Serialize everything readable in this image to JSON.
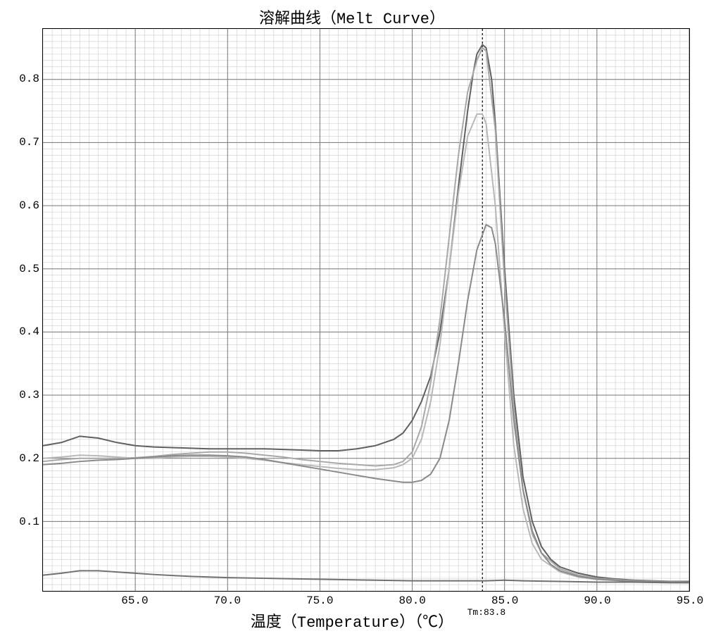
{
  "chart": {
    "type": "line",
    "title": "溶解曲线（Melt Curve）",
    "xlabel": "温度（Temperature）（℃）",
    "tm_annotation": "Tm:83.8",
    "tm_x": 83.8,
    "background_color": "#ffffff",
    "grid_minor_color": "#cccccc",
    "grid_major_color": "#777777",
    "border_color": "#000000",
    "x_axis": {
      "min": 60.0,
      "max": 95.0,
      "major_ticks": [
        65.0,
        70.0,
        75.0,
        80.0,
        85.0,
        90.0,
        95.0
      ],
      "minor_step": 0.5,
      "label_fontsize": 16
    },
    "y_axis": {
      "min": -0.01,
      "max": 0.88,
      "major_ticks": [
        0.1,
        0.2,
        0.3,
        0.4,
        0.5,
        0.6,
        0.7,
        0.8
      ],
      "minor_step": 0.01,
      "label_fontsize": 16
    },
    "series": [
      {
        "name": "curve-1",
        "color": "#606060",
        "line_width": 2.0,
        "points": [
          [
            60.0,
            0.22
          ],
          [
            61.0,
            0.225
          ],
          [
            62.0,
            0.235
          ],
          [
            63.0,
            0.232
          ],
          [
            64.0,
            0.225
          ],
          [
            65.0,
            0.22
          ],
          [
            66.0,
            0.218
          ],
          [
            67.0,
            0.217
          ],
          [
            68.0,
            0.216
          ],
          [
            69.0,
            0.215
          ],
          [
            70.0,
            0.215
          ],
          [
            71.0,
            0.215
          ],
          [
            72.0,
            0.215
          ],
          [
            73.0,
            0.214
          ],
          [
            74.0,
            0.213
          ],
          [
            75.0,
            0.212
          ],
          [
            76.0,
            0.212
          ],
          [
            77.0,
            0.215
          ],
          [
            78.0,
            0.22
          ],
          [
            79.0,
            0.23
          ],
          [
            79.5,
            0.24
          ],
          [
            80.0,
            0.26
          ],
          [
            80.5,
            0.29
          ],
          [
            81.0,
            0.33
          ],
          [
            81.5,
            0.4
          ],
          [
            82.0,
            0.5
          ],
          [
            82.5,
            0.63
          ],
          [
            83.0,
            0.75
          ],
          [
            83.3,
            0.81
          ],
          [
            83.5,
            0.84
          ],
          [
            83.8,
            0.855
          ],
          [
            84.0,
            0.85
          ],
          [
            84.3,
            0.8
          ],
          [
            84.5,
            0.73
          ],
          [
            85.0,
            0.5
          ],
          [
            85.5,
            0.3
          ],
          [
            86.0,
            0.17
          ],
          [
            86.5,
            0.1
          ],
          [
            87.0,
            0.06
          ],
          [
            87.5,
            0.04
          ],
          [
            88.0,
            0.028
          ],
          [
            89.0,
            0.018
          ],
          [
            90.0,
            0.012
          ],
          [
            91.0,
            0.009
          ],
          [
            92.0,
            0.007
          ],
          [
            93.0,
            0.006
          ],
          [
            94.0,
            0.005
          ],
          [
            95.0,
            0.005
          ]
        ]
      },
      {
        "name": "curve-2",
        "color": "#a8a8a8",
        "line_width": 2.0,
        "points": [
          [
            60.0,
            0.195
          ],
          [
            61.0,
            0.198
          ],
          [
            62.0,
            0.2
          ],
          [
            63.0,
            0.2
          ],
          [
            64.0,
            0.2
          ],
          [
            65.0,
            0.201
          ],
          [
            66.0,
            0.203
          ],
          [
            67.0,
            0.206
          ],
          [
            68.0,
            0.208
          ],
          [
            69.0,
            0.21
          ],
          [
            70.0,
            0.21
          ],
          [
            71.0,
            0.208
          ],
          [
            72.0,
            0.205
          ],
          [
            73.0,
            0.202
          ],
          [
            74.0,
            0.198
          ],
          [
            75.0,
            0.195
          ],
          [
            76.0,
            0.192
          ],
          [
            77.0,
            0.19
          ],
          [
            78.0,
            0.188
          ],
          [
            79.0,
            0.19
          ],
          [
            79.5,
            0.195
          ],
          [
            80.0,
            0.21
          ],
          [
            80.5,
            0.25
          ],
          [
            81.0,
            0.32
          ],
          [
            81.5,
            0.42
          ],
          [
            82.0,
            0.55
          ],
          [
            82.5,
            0.68
          ],
          [
            83.0,
            0.78
          ],
          [
            83.5,
            0.83
          ],
          [
            83.8,
            0.85
          ],
          [
            84.0,
            0.845
          ],
          [
            84.5,
            0.72
          ],
          [
            85.0,
            0.48
          ],
          [
            85.5,
            0.28
          ],
          [
            86.0,
            0.15
          ],
          [
            86.5,
            0.08
          ],
          [
            87.0,
            0.05
          ],
          [
            88.0,
            0.025
          ],
          [
            89.0,
            0.015
          ],
          [
            90.0,
            0.01
          ],
          [
            92.0,
            0.006
          ],
          [
            95.0,
            0.004
          ]
        ]
      },
      {
        "name": "curve-3",
        "color": "#b8b8b8",
        "line_width": 2.0,
        "points": [
          [
            60.0,
            0.2
          ],
          [
            61.0,
            0.202
          ],
          [
            62.0,
            0.205
          ],
          [
            63.0,
            0.204
          ],
          [
            64.0,
            0.202
          ],
          [
            65.0,
            0.2
          ],
          [
            66.0,
            0.2
          ],
          [
            67.0,
            0.202
          ],
          [
            68.0,
            0.203
          ],
          [
            69.0,
            0.203
          ],
          [
            70.0,
            0.202
          ],
          [
            71.0,
            0.2
          ],
          [
            72.0,
            0.197
          ],
          [
            73.0,
            0.193
          ],
          [
            74.0,
            0.19
          ],
          [
            75.0,
            0.187
          ],
          [
            76.0,
            0.184
          ],
          [
            77.0,
            0.182
          ],
          [
            78.0,
            0.182
          ],
          [
            79.0,
            0.185
          ],
          [
            79.5,
            0.19
          ],
          [
            80.0,
            0.2
          ],
          [
            80.5,
            0.23
          ],
          [
            81.0,
            0.29
          ],
          [
            81.5,
            0.38
          ],
          [
            82.0,
            0.5
          ],
          [
            82.5,
            0.62
          ],
          [
            83.0,
            0.71
          ],
          [
            83.5,
            0.745
          ],
          [
            83.8,
            0.745
          ],
          [
            84.0,
            0.73
          ],
          [
            84.5,
            0.6
          ],
          [
            85.0,
            0.4
          ],
          [
            85.5,
            0.22
          ],
          [
            86.0,
            0.12
          ],
          [
            86.5,
            0.065
          ],
          [
            87.0,
            0.04
          ],
          [
            88.0,
            0.02
          ],
          [
            89.0,
            0.012
          ],
          [
            90.0,
            0.008
          ],
          [
            92.0,
            0.005
          ],
          [
            95.0,
            0.004
          ]
        ]
      },
      {
        "name": "curve-4",
        "color": "#8a8a8a",
        "line_width": 2.0,
        "points": [
          [
            60.0,
            0.19
          ],
          [
            61.0,
            0.192
          ],
          [
            62.0,
            0.195
          ],
          [
            63.0,
            0.197
          ],
          [
            64.0,
            0.198
          ],
          [
            65.0,
            0.2
          ],
          [
            66.0,
            0.202
          ],
          [
            67.0,
            0.204
          ],
          [
            68.0,
            0.205
          ],
          [
            69.0,
            0.205
          ],
          [
            70.0,
            0.204
          ],
          [
            71.0,
            0.202
          ],
          [
            72.0,
            0.198
          ],
          [
            73.0,
            0.193
          ],
          [
            74.0,
            0.188
          ],
          [
            75.0,
            0.183
          ],
          [
            76.0,
            0.178
          ],
          [
            77.0,
            0.173
          ],
          [
            78.0,
            0.168
          ],
          [
            79.0,
            0.164
          ],
          [
            79.5,
            0.162
          ],
          [
            80.0,
            0.162
          ],
          [
            80.5,
            0.165
          ],
          [
            81.0,
            0.175
          ],
          [
            81.5,
            0.2
          ],
          [
            82.0,
            0.26
          ],
          [
            82.5,
            0.35
          ],
          [
            83.0,
            0.45
          ],
          [
            83.5,
            0.53
          ],
          [
            84.0,
            0.57
          ],
          [
            84.3,
            0.565
          ],
          [
            84.5,
            0.54
          ],
          [
            85.0,
            0.42
          ],
          [
            85.5,
            0.26
          ],
          [
            86.0,
            0.15
          ],
          [
            86.5,
            0.085
          ],
          [
            87.0,
            0.05
          ],
          [
            87.5,
            0.032
          ],
          [
            88.0,
            0.022
          ],
          [
            89.0,
            0.013
          ],
          [
            90.0,
            0.009
          ],
          [
            92.0,
            0.005
          ],
          [
            95.0,
            0.004
          ]
        ]
      },
      {
        "name": "curve-5-baseline",
        "color": "#707070",
        "line_width": 2.0,
        "points": [
          [
            60.0,
            0.015
          ],
          [
            61.0,
            0.018
          ],
          [
            62.0,
            0.022
          ],
          [
            63.0,
            0.022
          ],
          [
            64.0,
            0.02
          ],
          [
            65.0,
            0.018
          ],
          [
            66.0,
            0.016
          ],
          [
            68.0,
            0.013
          ],
          [
            70.0,
            0.011
          ],
          [
            72.0,
            0.01
          ],
          [
            74.0,
            0.009
          ],
          [
            76.0,
            0.008
          ],
          [
            78.0,
            0.007
          ],
          [
            80.0,
            0.006
          ],
          [
            82.0,
            0.006
          ],
          [
            84.0,
            0.006
          ],
          [
            85.0,
            0.007
          ],
          [
            86.0,
            0.006
          ],
          [
            88.0,
            0.005
          ],
          [
            90.0,
            0.004
          ],
          [
            92.0,
            0.004
          ],
          [
            94.0,
            0.003
          ],
          [
            95.0,
            0.003
          ]
        ]
      }
    ]
  }
}
